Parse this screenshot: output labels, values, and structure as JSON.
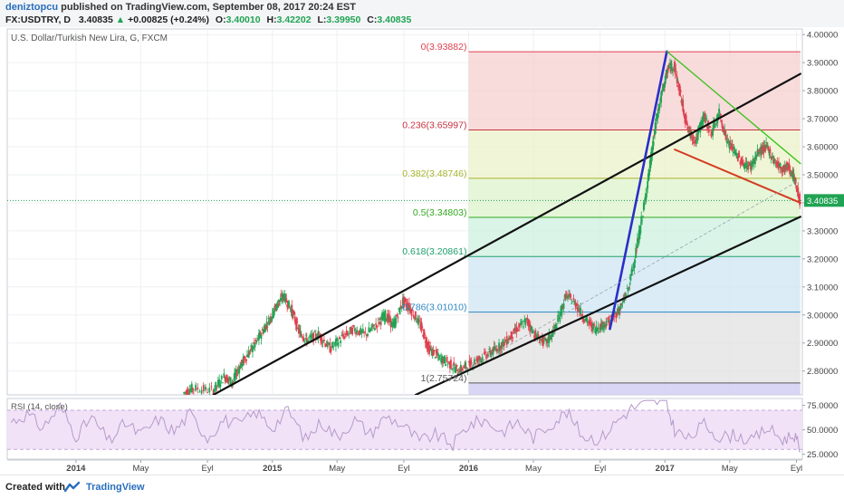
{
  "header": {
    "username": "deniztopcu",
    "published_text": "published on TradingView.com, September 08, 2017 20:24 EST",
    "symbol": "FX:USDTRY, D",
    "last": "3.40835",
    "change": "+0.00825 (+0.24%)",
    "open_label": "O:",
    "open": "3.40010",
    "high_label": "H:",
    "high": "3.42202",
    "low_label": "L:",
    "low": "3.39950",
    "close_label": "C:",
    "close": "3.40835"
  },
  "footer": {
    "created_with": "Created with",
    "brand": "TradingView"
  },
  "colors": {
    "up": "#21a354",
    "down": "#e0404f",
    "channel": "#111111",
    "blue_line": "#2a2fc9",
    "green_line": "#3fc420",
    "red_line": "#d43a1f",
    "rsi_line": "#b79ac9",
    "rsi_band": "#f1e2f8",
    "price_tag": "#21a354"
  },
  "chart_data": [
    {
      "type": "line",
      "title": "U.S. Dollar/Turkish New Lira, G, FXCM",
      "y_ticks": [
        2.8,
        2.9,
        3.0,
        3.1,
        3.2,
        3.3,
        3.4,
        3.5,
        3.6,
        3.7,
        3.8,
        3.9,
        4.0
      ],
      "y_tick_labels": [
        "2.80000",
        "2.90000",
        "3.00000",
        "3.10000",
        "3.20000",
        "3.30000",
        "",
        "3.50000",
        "3.60000",
        "3.70000",
        "3.80000",
        "3.90000",
        "4.00000"
      ],
      "ylim": [
        2.715,
        4.02
      ],
      "x_ticks": [
        "2014",
        "May",
        "Eyl",
        "2015",
        "May",
        "Eyl",
        "2016",
        "May",
        "Eyl",
        "2017",
        "May",
        "Eyl"
      ],
      "x_tick_years": [
        2014.0,
        2014.33,
        2014.67,
        2015.0,
        2015.33,
        2015.67,
        2016.0,
        2016.33,
        2016.67,
        2017.0,
        2017.33,
        2017.67
      ],
      "xlim": [
        2013.65,
        2017.7
      ],
      "last_price_label": "3.40835",
      "last_price": 3.40835,
      "price_series": [
        [
          2014.55,
          2.72
        ],
        [
          2014.6,
          2.74
        ],
        [
          2014.7,
          2.73
        ],
        [
          2014.76,
          2.78
        ],
        [
          2014.8,
          2.76
        ],
        [
          2014.84,
          2.82
        ],
        [
          2014.88,
          2.86
        ],
        [
          2014.92,
          2.9
        ],
        [
          2014.96,
          2.95
        ],
        [
          2015.0,
          3.0
        ],
        [
          2015.03,
          3.04
        ],
        [
          2015.06,
          3.07
        ],
        [
          2015.1,
          3.02
        ],
        [
          2015.14,
          2.94
        ],
        [
          2015.18,
          2.91
        ],
        [
          2015.24,
          2.93
        ],
        [
          2015.3,
          2.88
        ],
        [
          2015.36,
          2.92
        ],
        [
          2015.42,
          2.95
        ],
        [
          2015.48,
          2.93
        ],
        [
          2015.54,
          2.97
        ],
        [
          2015.58,
          3.0
        ],
        [
          2015.62,
          2.96
        ],
        [
          2015.67,
          3.05
        ],
        [
          2015.71,
          3.02
        ],
        [
          2015.76,
          2.96
        ],
        [
          2015.8,
          2.88
        ],
        [
          2015.85,
          2.85
        ],
        [
          2015.9,
          2.83
        ],
        [
          2015.95,
          2.8
        ],
        [
          2016.0,
          2.82
        ],
        [
          2016.05,
          2.84
        ],
        [
          2016.1,
          2.86
        ],
        [
          2016.15,
          2.88
        ],
        [
          2016.2,
          2.91
        ],
        [
          2016.25,
          2.95
        ],
        [
          2016.3,
          2.98
        ],
        [
          2016.35,
          2.92
        ],
        [
          2016.4,
          2.9
        ],
        [
          2016.45,
          2.96
        ],
        [
          2016.5,
          3.07
        ],
        [
          2016.55,
          3.04
        ],
        [
          2016.6,
          2.98
        ],
        [
          2016.65,
          2.95
        ],
        [
          2016.7,
          2.97
        ],
        [
          2016.74,
          2.99
        ],
        [
          2016.78,
          3.03
        ],
        [
          2016.82,
          3.1
        ],
        [
          2016.86,
          3.24
        ],
        [
          2016.9,
          3.4
        ],
        [
          2016.93,
          3.55
        ],
        [
          2016.96,
          3.7
        ],
        [
          2016.99,
          3.8
        ],
        [
          2017.02,
          3.88
        ],
        [
          2017.05,
          3.89
        ],
        [
          2017.08,
          3.79
        ],
        [
          2017.12,
          3.66
        ],
        [
          2017.16,
          3.62
        ],
        [
          2017.2,
          3.71
        ],
        [
          2017.24,
          3.65
        ],
        [
          2017.28,
          3.72
        ],
        [
          2017.32,
          3.62
        ],
        [
          2017.36,
          3.58
        ],
        [
          2017.4,
          3.54
        ],
        [
          2017.44,
          3.53
        ],
        [
          2017.48,
          3.58
        ],
        [
          2017.52,
          3.6
        ],
        [
          2017.56,
          3.55
        ],
        [
          2017.6,
          3.52
        ],
        [
          2017.63,
          3.53
        ],
        [
          2017.66,
          3.49
        ],
        [
          2017.69,
          3.408
        ]
      ],
      "fibonacci": {
        "high": 3.93882,
        "low": 2.75724,
        "x_start": 2016.0,
        "x_end": 2017.69,
        "levels": [
          {
            "ratio": 0,
            "label": "0(3.93882)",
            "price": 3.93882,
            "color": "#e0404f",
            "fill": "#f5cfcf"
          },
          {
            "ratio": 0.236,
            "label": "0.236(3.65997)",
            "price": 3.65997,
            "color": "#c8323f",
            "fill": "#ecf1c9"
          },
          {
            "ratio": 0.382,
            "label": "0.382(3.48746)",
            "price": 3.48746,
            "color": "#a9b52b",
            "fill": "#dcf3cc"
          },
          {
            "ratio": 0.5,
            "label": "0.5(3.34803)",
            "price": 3.34803,
            "color": "#33a820",
            "fill": "#cdf0df"
          },
          {
            "ratio": 0.618,
            "label": "0.618(3.20861)",
            "price": 3.20861,
            "color": "#1fa06b",
            "fill": "#cfe5f3"
          },
          {
            "ratio": 0.786,
            "label": "0.786(3.01010)",
            "price": 3.0101,
            "color": "#2d87c4",
            "fill": "#e2e2e2"
          },
          {
            "ratio": 1,
            "label": "1(2.75724)",
            "price": 2.75724,
            "color": "#5a5a5a",
            "fill": "#cfcaf3"
          }
        ]
      },
      "trendlines": [
        {
          "name": "channel-upper",
          "points": [
            [
              2014.7,
              2.715
            ],
            [
              2017.69,
              3.86
            ]
          ]
        },
        {
          "name": "channel-lower",
          "points": [
            [
              2015.73,
              2.715
            ],
            [
              2017.69,
              3.35
            ]
          ]
        },
        {
          "name": "impulse",
          "points": [
            [
              2016.72,
              2.95
            ],
            [
              2017.01,
              3.94
            ]
          ]
        },
        {
          "name": "green-descending",
          "points": [
            [
              2017.01,
              3.94
            ],
            [
              2017.69,
              3.54
            ]
          ]
        },
        {
          "name": "red-descending",
          "points": [
            [
              2017.05,
              3.59
            ],
            [
              2017.69,
              3.4
            ]
          ]
        },
        {
          "name": "dashed-diagonal",
          "points": [
            [
              2015.9,
              2.77
            ],
            [
              2017.66,
              3.47
            ]
          ]
        }
      ]
    },
    {
      "type": "line",
      "title": "RSI (14, close)",
      "y_ticks": [
        25,
        50,
        75
      ],
      "y_tick_labels": [
        "25.0000",
        "50.0000",
        "75.0000"
      ],
      "ylim": [
        20,
        82
      ],
      "band": [
        30,
        70
      ],
      "xlim": [
        2013.65,
        2017.7
      ],
      "values": [
        [
          2013.67,
          58
        ],
        [
          2013.75,
          66
        ],
        [
          2013.83,
          52
        ],
        [
          2013.92,
          74
        ],
        [
          2014.0,
          44
        ],
        [
          2014.08,
          62
        ],
        [
          2014.17,
          38
        ],
        [
          2014.25,
          57
        ],
        [
          2014.33,
          45
        ],
        [
          2014.42,
          61
        ],
        [
          2014.5,
          48
        ],
        [
          2014.58,
          66
        ],
        [
          2014.67,
          42
        ],
        [
          2014.75,
          60
        ],
        [
          2014.83,
          55
        ],
        [
          2014.92,
          68
        ],
        [
          2015.0,
          52
        ],
        [
          2015.08,
          70
        ],
        [
          2015.17,
          40
        ],
        [
          2015.25,
          58
        ],
        [
          2015.33,
          43
        ],
        [
          2015.42,
          60
        ],
        [
          2015.5,
          46
        ],
        [
          2015.58,
          64
        ],
        [
          2015.67,
          54
        ],
        [
          2015.75,
          38
        ],
        [
          2015.83,
          45
        ],
        [
          2015.92,
          35
        ],
        [
          2016.0,
          55
        ],
        [
          2016.08,
          60
        ],
        [
          2016.17,
          48
        ],
        [
          2016.25,
          58
        ],
        [
          2016.33,
          42
        ],
        [
          2016.42,
          56
        ],
        [
          2016.5,
          68
        ],
        [
          2016.58,
          44
        ],
        [
          2016.67,
          40
        ],
        [
          2016.75,
          58
        ],
        [
          2016.83,
          72
        ],
        [
          2016.92,
          78
        ],
        [
          2017.0,
          80
        ],
        [
          2017.05,
          50
        ],
        [
          2017.12,
          40
        ],
        [
          2017.2,
          56
        ],
        [
          2017.28,
          42
        ],
        [
          2017.36,
          45
        ],
        [
          2017.44,
          38
        ],
        [
          2017.52,
          52
        ],
        [
          2017.6,
          40
        ],
        [
          2017.66,
          45
        ],
        [
          2017.69,
          27
        ]
      ]
    }
  ]
}
